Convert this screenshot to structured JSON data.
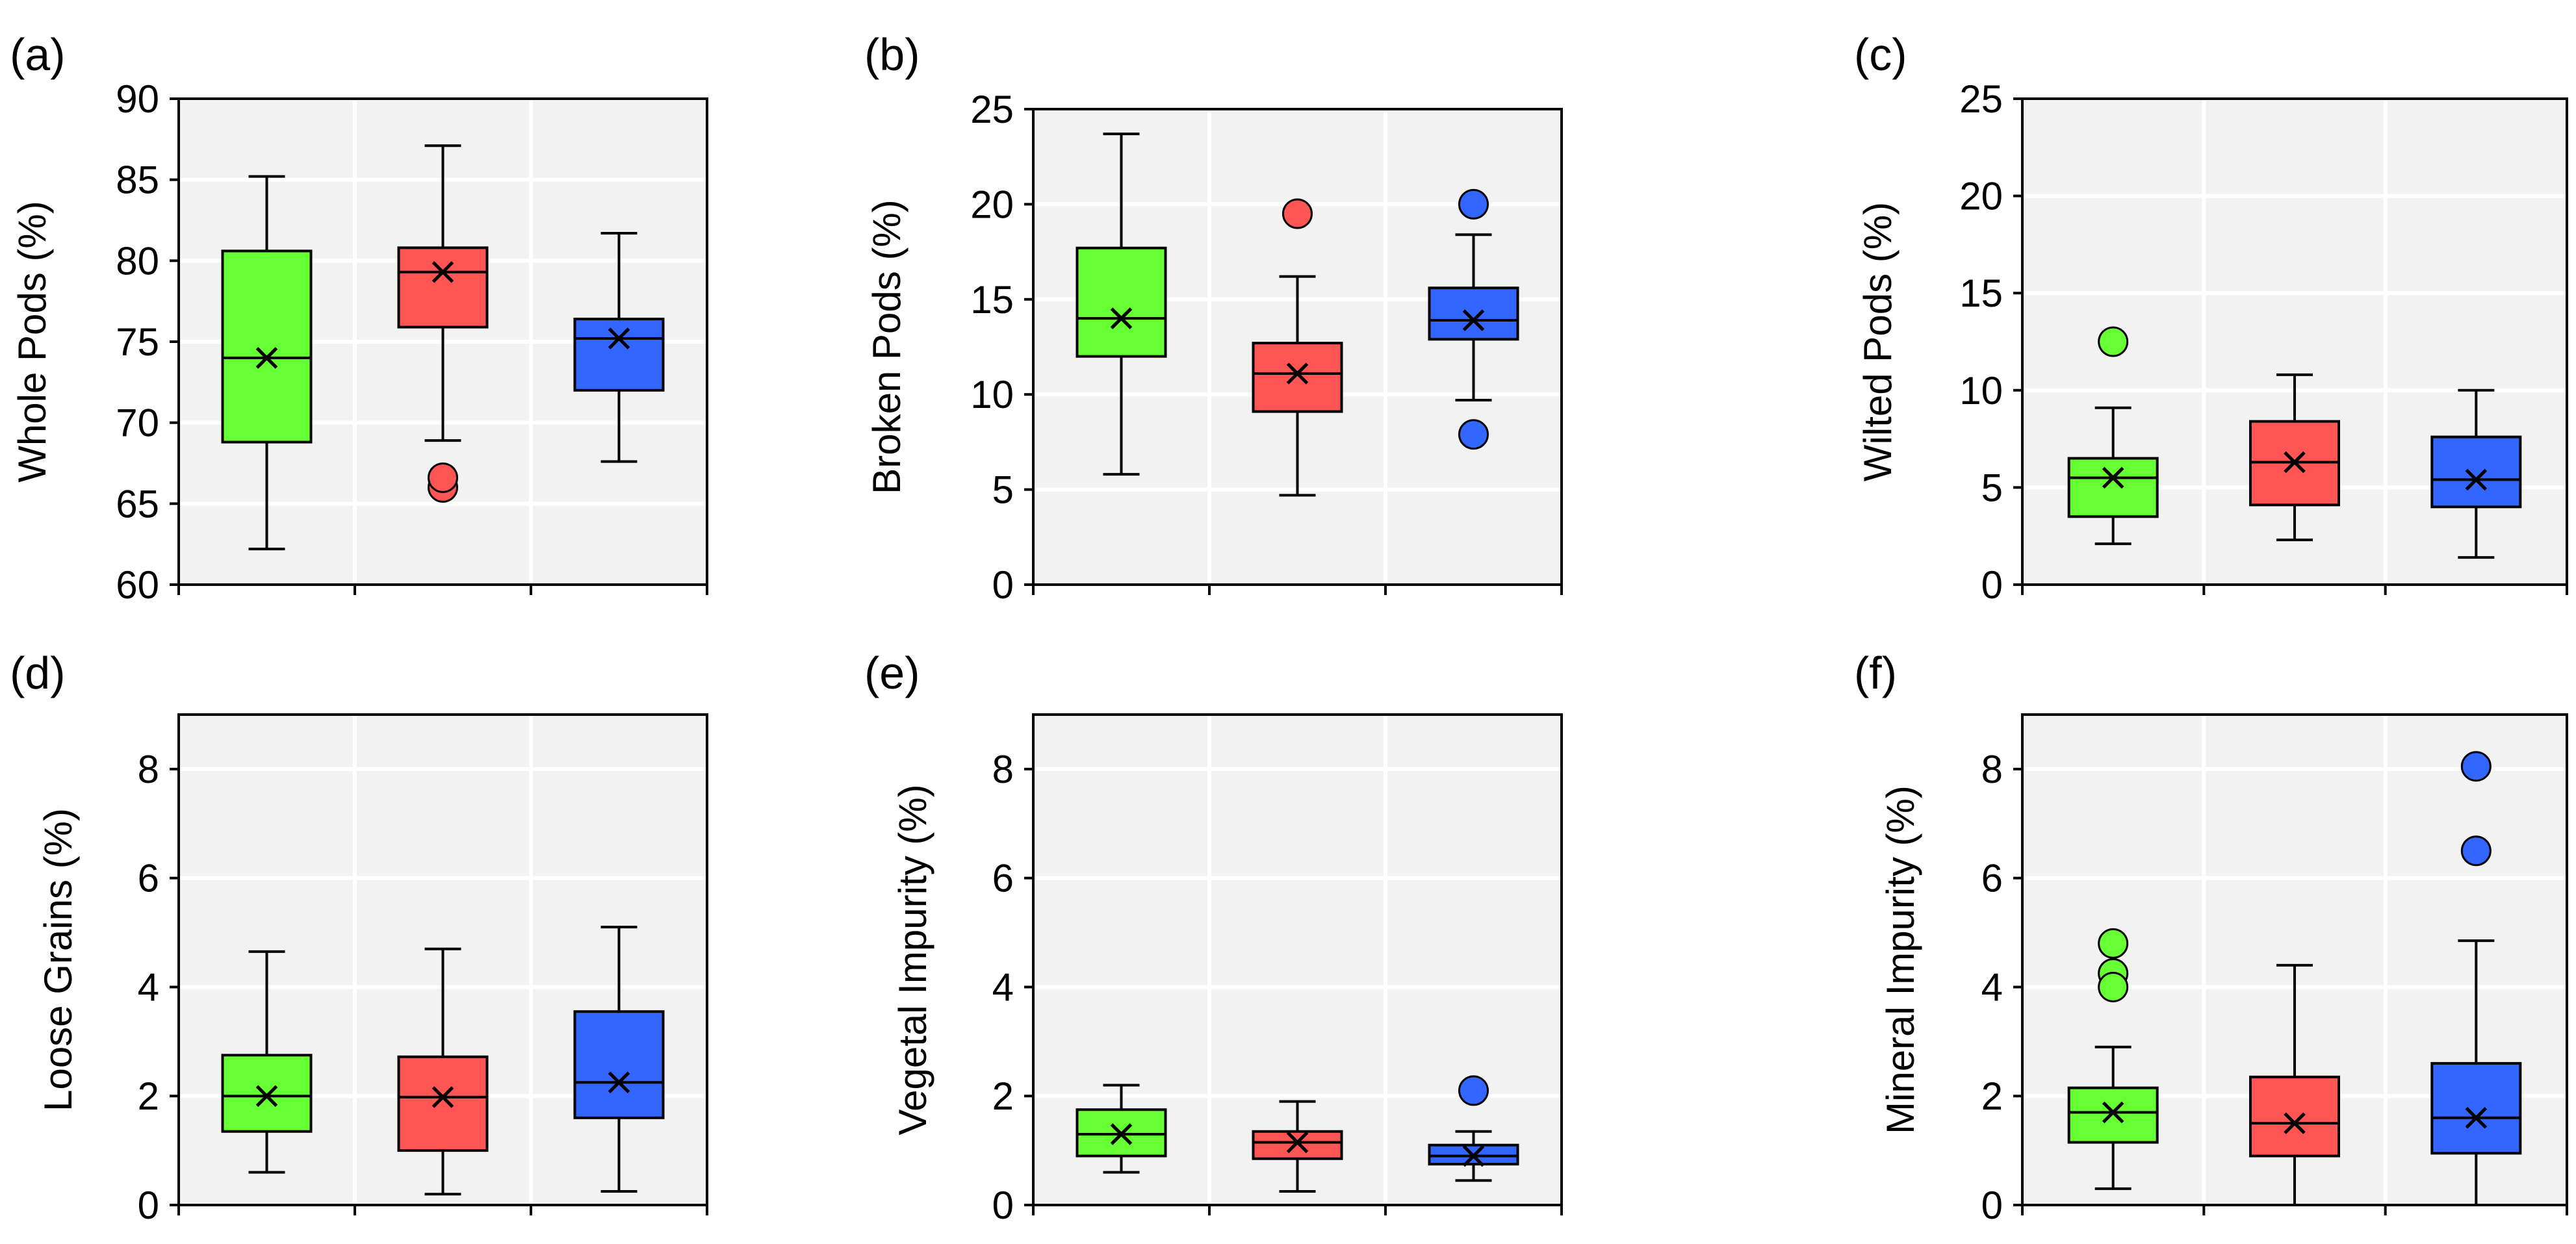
{
  "colors": {
    "background": "#f2f2f2",
    "grid": "#ffffff",
    "series": [
      "#66ff33",
      "#ff5555",
      "#3366ff"
    ]
  },
  "chart_data": [
    {
      "type": "box",
      "panel": "(a)",
      "ylabel": "Whole Pods (%)",
      "ylim": [
        60,
        90
      ],
      "yticks": [
        60,
        65,
        70,
        75,
        80,
        85,
        90
      ],
      "boxes": [
        {
          "min": 62.2,
          "q1": 68.8,
          "median": 74.0,
          "q3": 80.6,
          "max": 85.2,
          "mean": 74.0,
          "outliers": []
        },
        {
          "min": 68.9,
          "q1": 75.9,
          "median": 79.3,
          "q3": 80.8,
          "max": 87.1,
          "mean": 79.3,
          "outliers": [
            66.0,
            66.6
          ]
        },
        {
          "min": 67.6,
          "q1": 72.0,
          "median": 75.2,
          "q3": 76.4,
          "max": 81.7,
          "mean": 75.2,
          "outliers": []
        }
      ]
    },
    {
      "type": "box",
      "panel": "(b)",
      "ylabel": "Broken Pods (%)",
      "ylim": [
        0,
        25
      ],
      "yticks": [
        0,
        5,
        10,
        15,
        20,
        25
      ],
      "boxes": [
        {
          "min": 5.8,
          "q1": 12.0,
          "median": 14.0,
          "q3": 17.7,
          "max": 23.7,
          "mean": 14.0,
          "outliers": []
        },
        {
          "min": 4.7,
          "q1": 9.1,
          "median": 11.1,
          "q3": 12.7,
          "max": 16.2,
          "mean": 11.1,
          "outliers": [
            19.5
          ]
        },
        {
          "min": 9.7,
          "q1": 12.9,
          "median": 13.9,
          "q3": 15.6,
          "max": 18.4,
          "mean": 13.9,
          "outliers": [
            20.0,
            7.9
          ]
        }
      ]
    },
    {
      "type": "box",
      "panel": "(c)",
      "ylabel": "Wilted Pods (%)",
      "ylim": [
        0,
        25
      ],
      "yticks": [
        0,
        5,
        10,
        15,
        20,
        25
      ],
      "boxes": [
        {
          "min": 2.1,
          "q1": 3.5,
          "median": 5.5,
          "q3": 6.5,
          "max": 9.1,
          "mean": 5.5,
          "outliers": [
            12.5
          ]
        },
        {
          "min": 2.3,
          "q1": 4.1,
          "median": 6.3,
          "q3": 8.4,
          "max": 10.8,
          "mean": 6.3,
          "outliers": []
        },
        {
          "min": 1.4,
          "q1": 4.0,
          "median": 5.4,
          "q3": 7.6,
          "max": 10.0,
          "mean": 5.4,
          "outliers": []
        }
      ]
    },
    {
      "type": "box",
      "panel": "(d)",
      "ylabel": "Loose Grains (%)",
      "ylim": [
        0,
        9
      ],
      "yticks": [
        0,
        2,
        4,
        6,
        8
      ],
      "boxes": [
        {
          "min": 0.6,
          "q1": 1.35,
          "median": 2.0,
          "q3": 2.75,
          "max": 4.65,
          "mean": 2.0,
          "outliers": []
        },
        {
          "min": 0.2,
          "q1": 1.0,
          "median": 1.98,
          "q3": 2.72,
          "max": 4.7,
          "mean": 1.98,
          "outliers": []
        },
        {
          "min": 0.25,
          "q1": 1.6,
          "median": 2.25,
          "q3": 3.55,
          "max": 5.1,
          "mean": 2.25,
          "outliers": []
        }
      ]
    },
    {
      "type": "box",
      "panel": "(e)",
      "ylabel": "Vegetal Impurity (%)",
      "ylim": [
        0,
        9
      ],
      "yticks": [
        0,
        2,
        4,
        6,
        8
      ],
      "boxes": [
        {
          "min": 0.6,
          "q1": 0.9,
          "median": 1.3,
          "q3": 1.75,
          "max": 2.2,
          "mean": 1.3,
          "outliers": []
        },
        {
          "min": 0.25,
          "q1": 0.85,
          "median": 1.15,
          "q3": 1.35,
          "max": 1.9,
          "mean": 1.15,
          "outliers": []
        },
        {
          "min": 0.45,
          "q1": 0.75,
          "median": 0.9,
          "q3": 1.1,
          "max": 1.35,
          "mean": 0.9,
          "outliers": [
            2.1
          ]
        }
      ]
    },
    {
      "type": "box",
      "panel": "(f)",
      "ylabel": "Mineral Impurity (%)",
      "ylim": [
        0,
        9
      ],
      "yticks": [
        0,
        2,
        4,
        6,
        8
      ],
      "boxes": [
        {
          "min": 0.3,
          "q1": 1.15,
          "median": 1.7,
          "q3": 2.15,
          "max": 2.9,
          "mean": 1.7,
          "outliers": [
            4.8,
            4.25,
            4.0
          ]
        },
        {
          "min": 0.0,
          "q1": 0.9,
          "median": 1.5,
          "q3": 2.35,
          "max": 4.4,
          "mean": 1.5,
          "outliers": []
        },
        {
          "min": 0.0,
          "q1": 0.95,
          "median": 1.6,
          "q3": 2.6,
          "max": 4.85,
          "mean": 1.6,
          "outliers": [
            8.05,
            6.5
          ]
        }
      ]
    }
  ]
}
